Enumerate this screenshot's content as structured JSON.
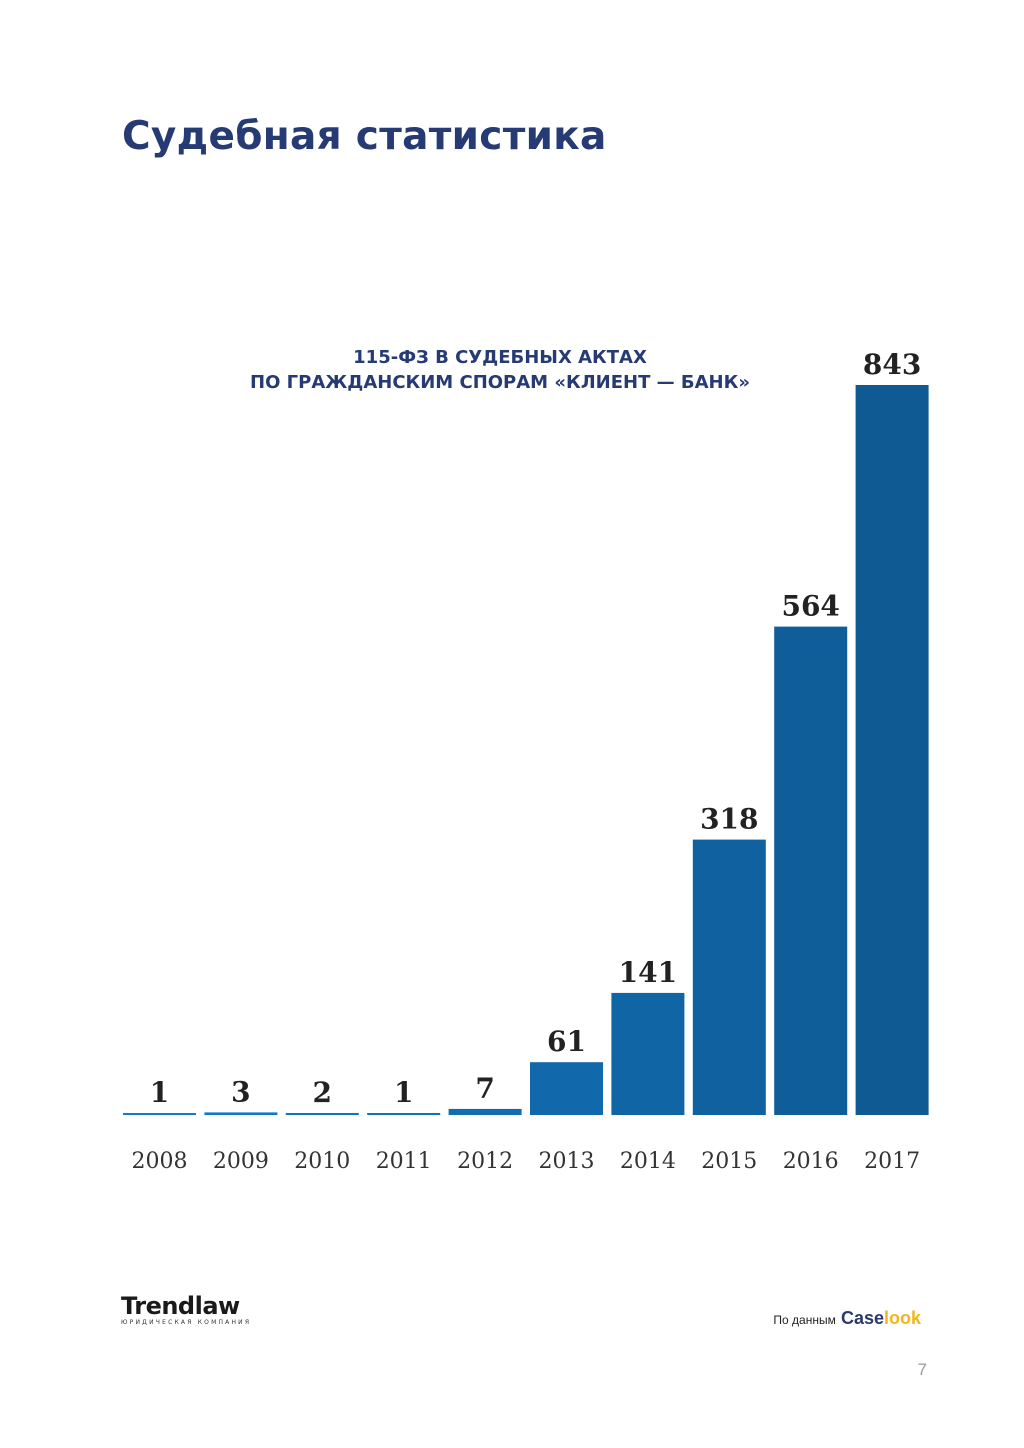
{
  "page": {
    "title": "Судебная статистика",
    "page_number": "7"
  },
  "chart_data": {
    "type": "bar",
    "title_lines": [
      "115-ФЗ В СУДЕБНЫХ АКТАХ",
      "ПО ГРАЖДАНСКИМ СПОРАМ «КЛИЕНТ — БАНК»"
    ],
    "categories": [
      "2008",
      "2009",
      "2010",
      "2011",
      "2012",
      "2013",
      "2014",
      "2015",
      "2016",
      "2017"
    ],
    "values": [
      1,
      3,
      2,
      1,
      7,
      61,
      141,
      318,
      564,
      843
    ],
    "data_labels": [
      "1",
      "3",
      "2",
      "1",
      "7",
      "61",
      "141",
      "318",
      "564",
      "843"
    ],
    "xlabel": "",
    "ylabel": "",
    "ylim": [
      0,
      843
    ],
    "grid": false,
    "legend": "none",
    "colors": {
      "bar_light": "#137bc9",
      "bar_dark": "#0f5a93",
      "label": "#222222",
      "tick": "#333333"
    }
  },
  "footer": {
    "logo_text": "Trendlaw",
    "logo_tagline": "ЮРИДИЧЕСКАЯ КОМПАНИЯ",
    "source_label": "По данным",
    "source_brand_part1": "Case",
    "source_brand_part2": "look"
  },
  "colors": {
    "title": "#263a73",
    "brand_yellow": "#f3b51c"
  }
}
